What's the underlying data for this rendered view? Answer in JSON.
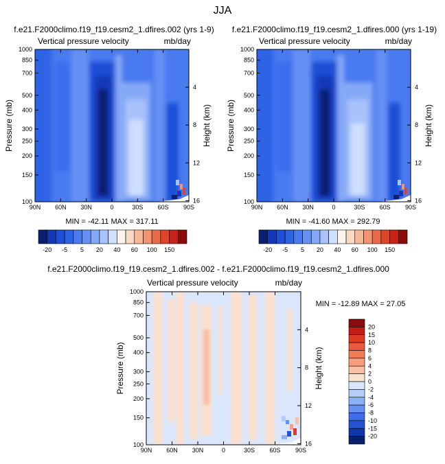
{
  "figure_title": "JJA",
  "chart_data": [
    {
      "type": "heatmap",
      "title": "f.e21.F2000climo.f19_f19.cesm2_1.dfires.002 (yrs 1-9)",
      "subtitle_left": "Vertical pressure velocity",
      "subtitle_right": "mb/day",
      "xlabel": "",
      "ylabel": "Pressure (mb)",
      "y2label": "Height (km)",
      "x_ticks": [
        "90N",
        "60N",
        "30N",
        "0",
        "30S",
        "60S",
        "90S"
      ],
      "y_ticks": [
        1000,
        850,
        700,
        500,
        400,
        300,
        250,
        200,
        150,
        100
      ],
      "y2_ticks": [
        4,
        8,
        12,
        16
      ],
      "xlim": [
        90,
        -90
      ],
      "ylim": [
        1000,
        100
      ],
      "stats": "MIN = -42.11  MAX = 317.11"
    },
    {
      "type": "heatmap",
      "title": "f.e21.F2000climo.f19_f19.cesm2_1.dfires.000 (yrs 1-19)",
      "subtitle_left": "Vertical pressure velocity",
      "subtitle_right": "mb/day",
      "xlabel": "",
      "ylabel": "Pressure (mb)",
      "y2label": "Height (km)",
      "x_ticks": [
        "90N",
        "60N",
        "30N",
        "0",
        "30S",
        "60S",
        "90S"
      ],
      "y_ticks": [
        1000,
        850,
        700,
        500,
        400,
        300,
        250,
        200,
        150,
        100
      ],
      "y2_ticks": [
        4,
        8,
        12,
        16
      ],
      "xlim": [
        90,
        -90
      ],
      "ylim": [
        1000,
        100
      ],
      "stats": "MIN = -41.60  MAX = 292.79"
    },
    {
      "type": "heatmap",
      "title": "f.e21.F2000climo.f19_f19.cesm2_1.dfires.002 - f.e21.F2000climo.f19_f19.cesm2_1.dfires.000",
      "subtitle_left": "Vertical pressure velocity",
      "subtitle_right": "mb/day",
      "xlabel": "",
      "ylabel": "Pressure (mb)",
      "y2label": "Height (km)",
      "x_ticks": [
        "90N",
        "60N",
        "30N",
        "0",
        "30S",
        "60S",
        "90S"
      ],
      "y_ticks": [
        1000,
        850,
        700,
        500,
        400,
        300,
        250,
        200,
        150,
        100
      ],
      "y2_ticks": [
        4,
        8,
        12,
        16
      ],
      "xlim": [
        90,
        -90
      ],
      "ylim": [
        1000,
        100
      ],
      "stats": "MIN = -12.89  MAX =  27.05"
    }
  ],
  "colorbar_top": {
    "labels": [
      "-20",
      "-5",
      "5",
      "20",
      "40",
      "60",
      "100",
      "150"
    ],
    "colors": [
      "#0a1f6e",
      "#1238b8",
      "#1f4fd6",
      "#2f63e6",
      "#4a7af0",
      "#6691f4",
      "#86a9f7",
      "#a9c3fa",
      "#cfdffd",
      "#fbf4ec",
      "#f9d9c2",
      "#f6b99a",
      "#f29472",
      "#ea6b4b",
      "#df4428",
      "#c82416",
      "#8c0c0c"
    ]
  },
  "colorbar_diff": {
    "labels": [
      "20",
      "15",
      "10",
      "8",
      "6",
      "4",
      "2",
      "0",
      "-2",
      "-4",
      "-6",
      "-8",
      "-10",
      "-15",
      "-20"
    ],
    "colors": [
      "#8c0c0c",
      "#c41c12",
      "#de3a22",
      "#ea5a3b",
      "#f07c58",
      "#f59f7e",
      "#f8c0a4",
      "#fbe1cf",
      "#d9e6fc",
      "#b5cdfa",
      "#8db1f6",
      "#6691f4",
      "#3f6fe8",
      "#2452d2",
      "#1236ac",
      "#0a1f6e"
    ]
  },
  "colors": {
    "land": "#ffffff",
    "top_panel_base": "#4a7af0",
    "diff_panel_base": "#d9e6fc"
  }
}
